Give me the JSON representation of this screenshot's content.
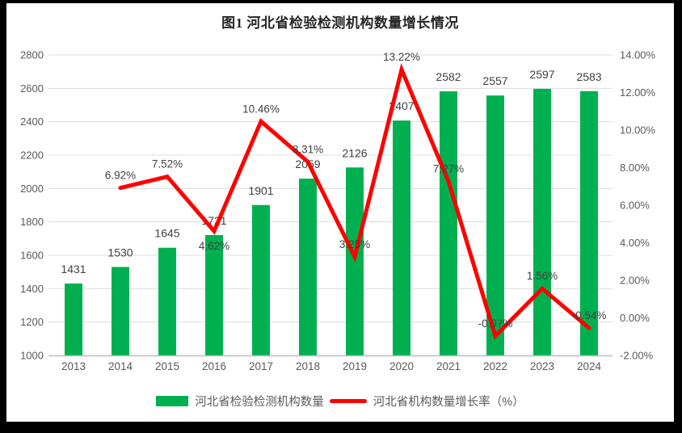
{
  "title": "图1 河北省检验检测机构数量增长情况",
  "colors": {
    "frame": "#000000",
    "background": "#ffffff",
    "bar": "#00B050",
    "line": "#FF0000",
    "grid": "#DCDCDC",
    "axis_line": "#C0C0C0",
    "axis_text": "#595959",
    "label_text": "#404040",
    "title_text": "#262626"
  },
  "chart_data": {
    "type": "bar+line combo",
    "title": "图1 河北省检验检测机构数量增长情况",
    "categories": [
      "2013",
      "2014",
      "2015",
      "2016",
      "2017",
      "2018",
      "2019",
      "2020",
      "2021",
      "2022",
      "2023",
      "2024"
    ],
    "series": [
      {
        "name": "河北省检验检测机构数量",
        "type": "bar",
        "axis": "left",
        "color": "#00B050",
        "values": [
          1431,
          1530,
          1645,
          1721,
          1901,
          2059,
          2126,
          2407,
          2582,
          2557,
          2597,
          2583
        ]
      },
      {
        "name": "河北省机构数量增长率（%）",
        "type": "line",
        "axis": "right",
        "color": "#FF0000",
        "values": [
          null,
          6.92,
          7.52,
          4.62,
          10.46,
          8.31,
          3.25,
          13.22,
          7.27,
          -0.97,
          1.56,
          -0.54
        ],
        "labels": [
          "",
          "6.92%",
          "7.52%",
          "4.62%",
          "10.46%",
          "8.31%",
          "3.25%",
          "13.22%",
          "7.27%",
          "-0.97%",
          "1.56%",
          "-0.54%"
        ],
        "label_below_indices": [
          3
        ]
      }
    ],
    "left_axis": {
      "min": 1000,
      "max": 2800,
      "ticks": [
        "1000",
        "1200",
        "1400",
        "1600",
        "1800",
        "2000",
        "2200",
        "2400",
        "2600",
        "2800"
      ]
    },
    "right_axis": {
      "min": -2,
      "max": 14,
      "ticks": [
        "-2.00%",
        "0.00%",
        "2.00%",
        "4.00%",
        "6.00%",
        "8.00%",
        "10.00%",
        "12.00%",
        "14.00%"
      ]
    },
    "grid": true,
    "legend_position": "bottom"
  },
  "legend": {
    "items": [
      {
        "label": "河北省检验检测机构数量",
        "swatch": "bar",
        "color": "#00B050"
      },
      {
        "label": "河北省机构数量增长率（%）",
        "swatch": "line",
        "color": "#FF0000"
      }
    ]
  }
}
